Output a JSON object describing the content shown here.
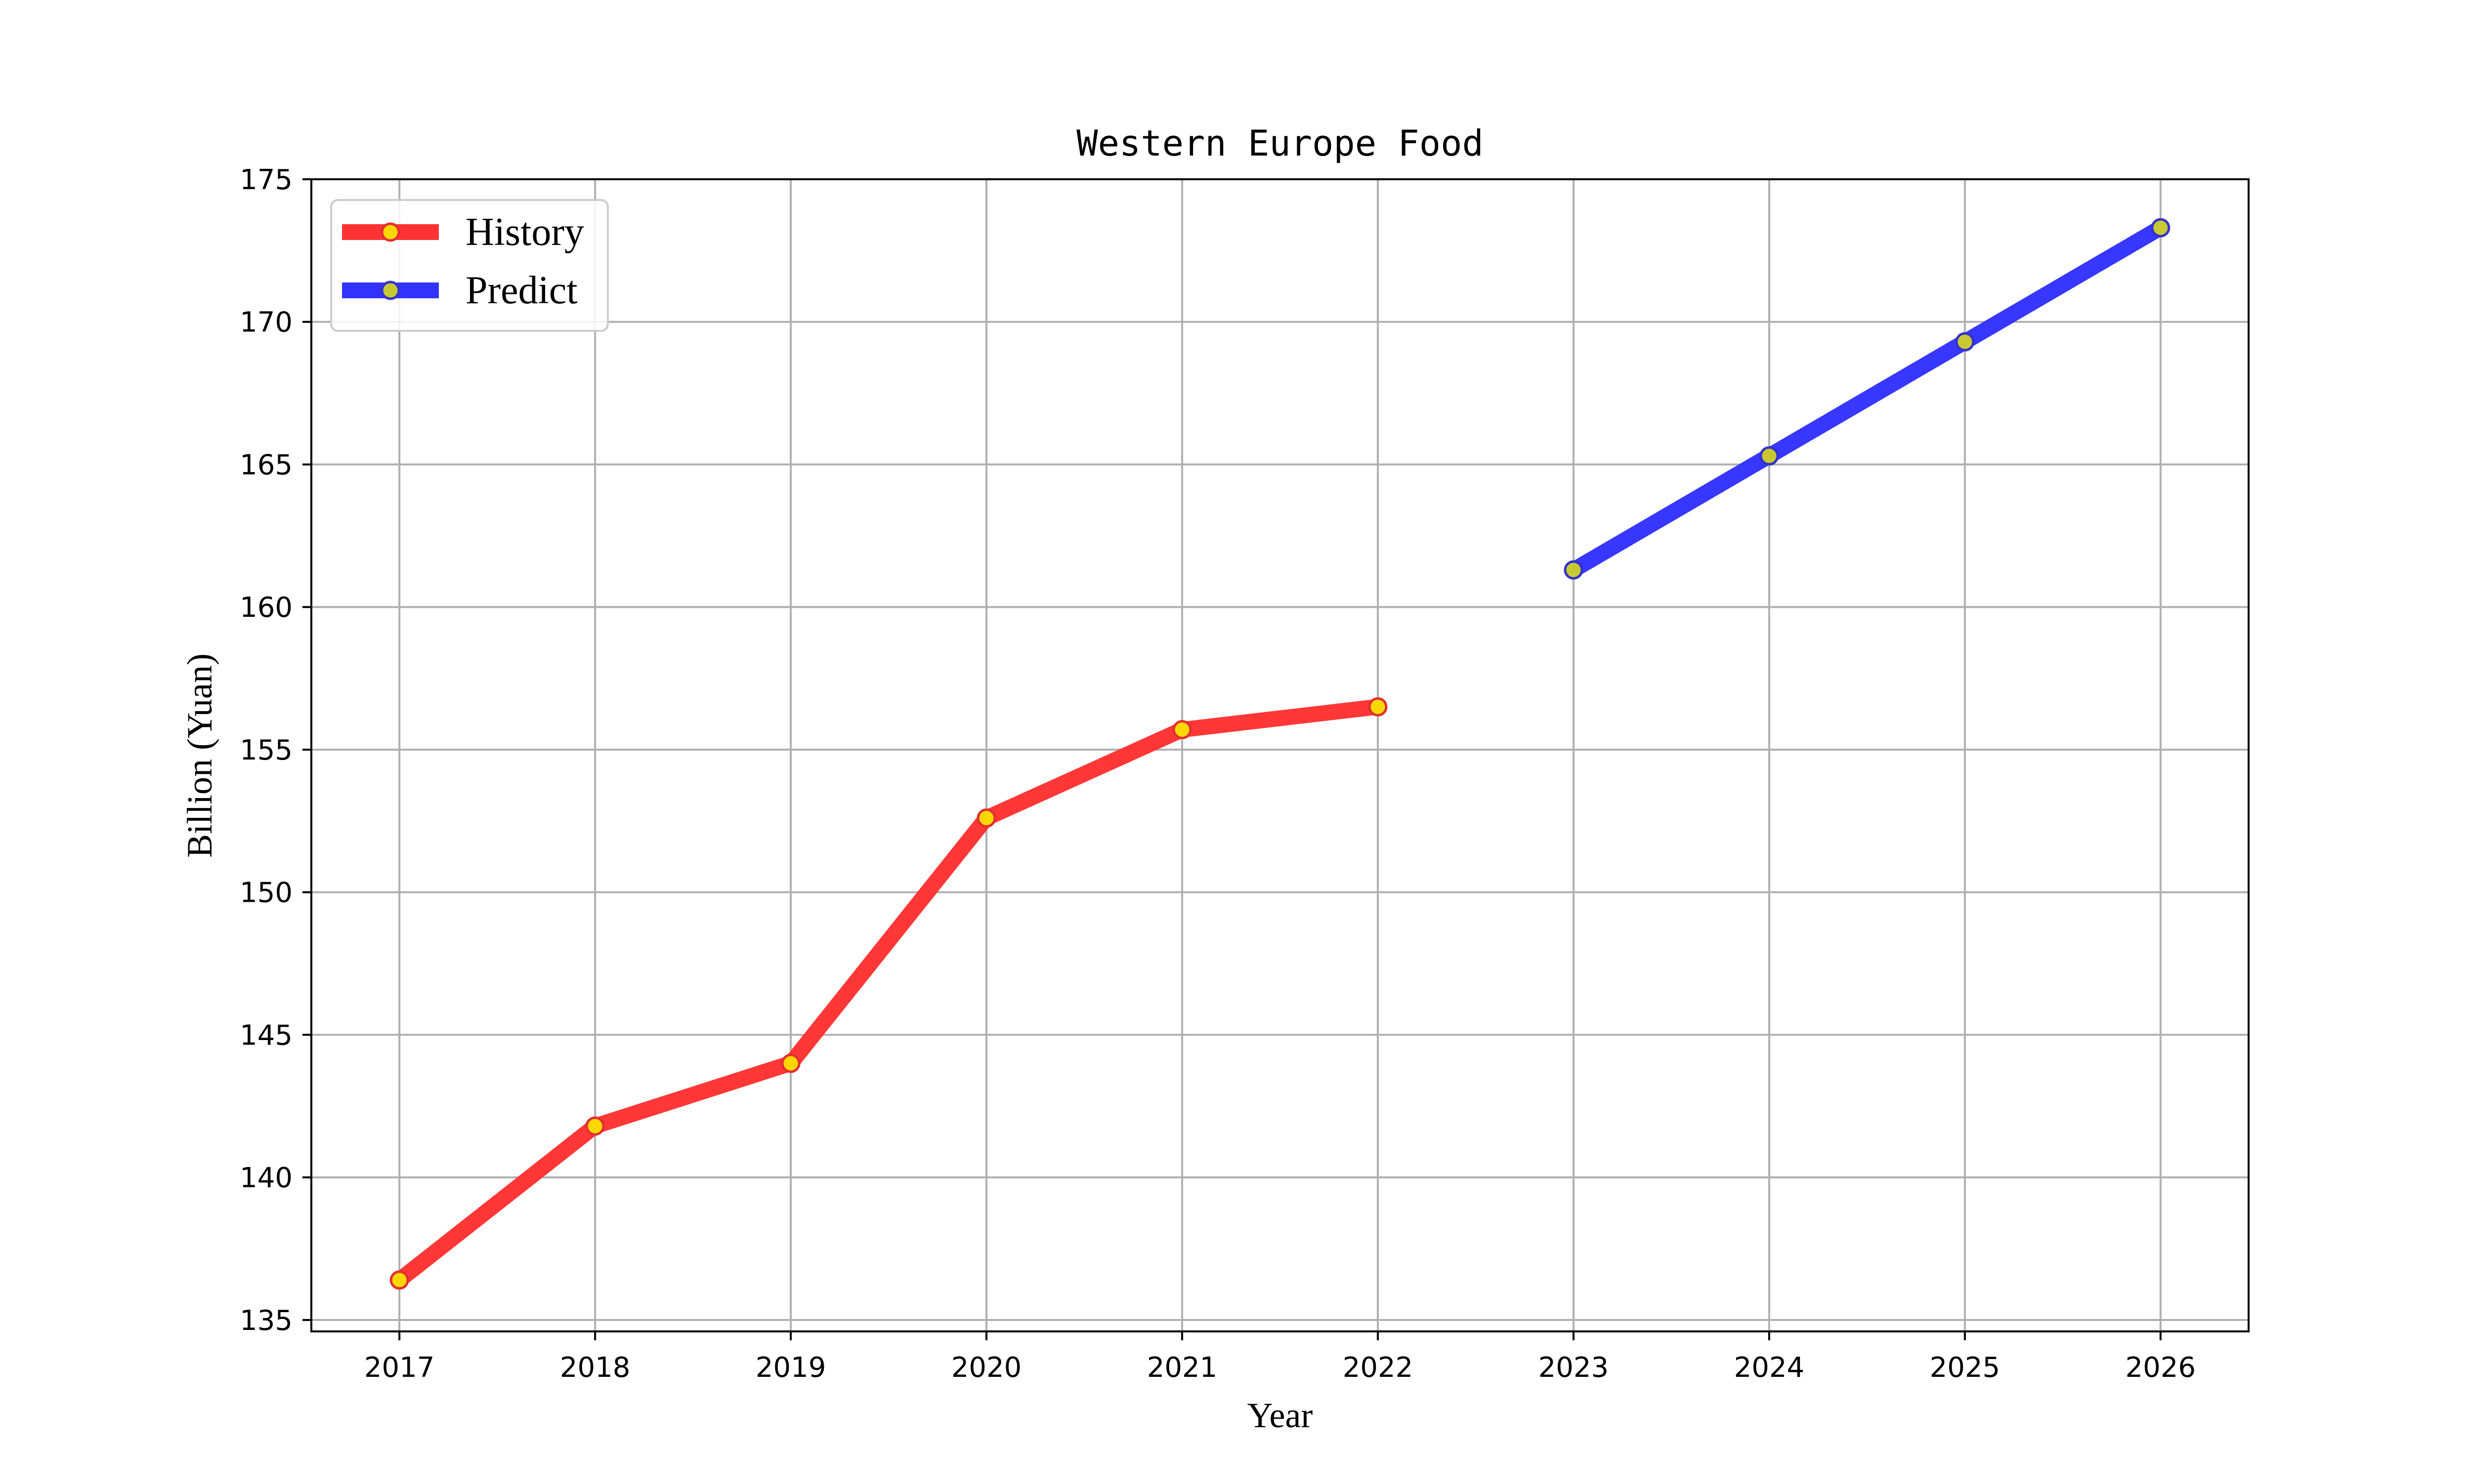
{
  "chart_data": {
    "type": "line",
    "title": "Western Europe Food",
    "xlabel": "Year",
    "ylabel": "Billion (Yuan)",
    "x_ticks": [
      "2017",
      "2018",
      "2019",
      "2020",
      "2021",
      "2022",
      "2023",
      "2024",
      "2025",
      "2026"
    ],
    "y_ticks": [
      "135",
      "140",
      "145",
      "150",
      "155",
      "160",
      "165",
      "170",
      "175"
    ],
    "xlim": [
      2016.55,
      2026.45
    ],
    "ylim": [
      134.6,
      175
    ],
    "grid": true,
    "legend_position": "top-left",
    "series": [
      {
        "name": "History",
        "color": "#ff3333",
        "marker_fill": "#ffd700",
        "marker_edge": "#e03030",
        "x": [
          2017,
          2018,
          2019,
          2020,
          2021,
          2022
        ],
        "y": [
          136.4,
          141.8,
          144.0,
          152.6,
          155.7,
          156.5
        ]
      },
      {
        "name": "Predict",
        "color": "#3333ff",
        "marker_fill": "#c8c832",
        "marker_edge": "#3333cc",
        "x": [
          2023,
          2024,
          2025,
          2026
        ],
        "y": [
          161.3,
          165.3,
          169.3,
          173.3
        ]
      }
    ]
  }
}
